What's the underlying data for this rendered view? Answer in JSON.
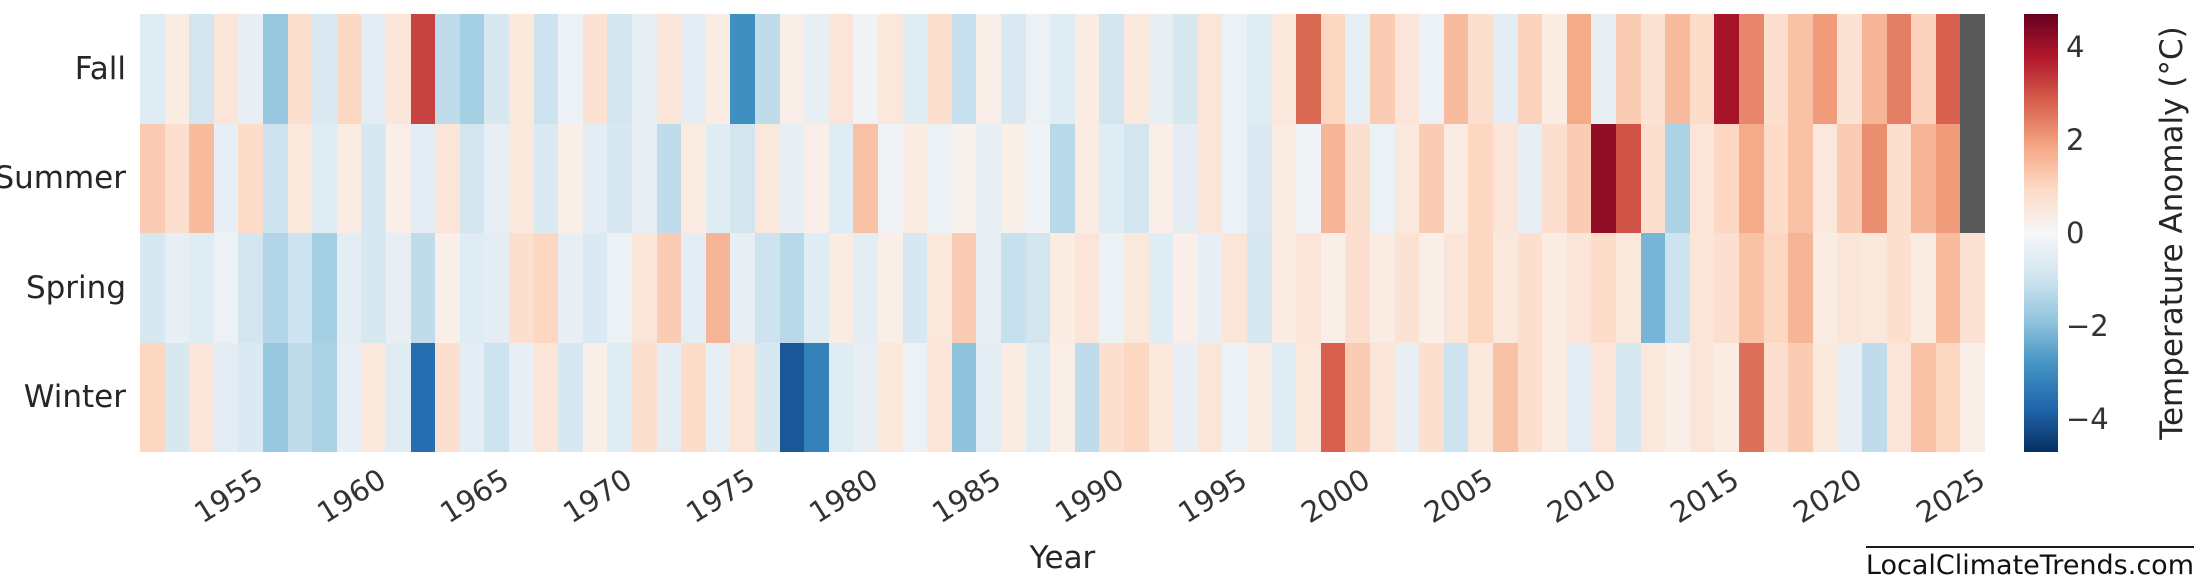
{
  "chart_data": {
    "type": "heatmap",
    "title": "",
    "xlabel": "Year",
    "ylabel": "",
    "colorbar_label": "Temperature Anomaly (°C)",
    "rows": [
      "Fall",
      "Summer",
      "Spring",
      "Winter"
    ],
    "years": [
      1951,
      1952,
      1953,
      1954,
      1955,
      1956,
      1957,
      1958,
      1959,
      1960,
      1961,
      1962,
      1963,
      1964,
      1965,
      1966,
      1967,
      1968,
      1969,
      1970,
      1971,
      1972,
      1973,
      1974,
      1975,
      1976,
      1977,
      1978,
      1979,
      1980,
      1981,
      1982,
      1983,
      1984,
      1985,
      1986,
      1987,
      1988,
      1989,
      1990,
      1991,
      1992,
      1993,
      1994,
      1995,
      1996,
      1997,
      1998,
      1999,
      2000,
      2001,
      2002,
      2003,
      2004,
      2005,
      2006,
      2007,
      2008,
      2009,
      2010,
      2011,
      2012,
      2013,
      2014,
      2015,
      2016,
      2017,
      2018,
      2019,
      2020,
      2021,
      2022,
      2023,
      2024,
      2025
    ],
    "x_ticks": [
      1955,
      1960,
      1965,
      1970,
      1975,
      1980,
      1985,
      1990,
      1995,
      2000,
      2005,
      2010,
      2015,
      2020,
      2025
    ],
    "colorbar_ticks": [
      {
        "value": 4,
        "label": "4"
      },
      {
        "value": 2,
        "label": "2"
      },
      {
        "value": 0,
        "label": "0"
      },
      {
        "value": -2,
        "label": "−2"
      },
      {
        "value": -4,
        "label": "−4"
      }
    ],
    "vmin": -4.7,
    "vmax": 4.7,
    "grid": false,
    "legend_position": "right-colorbar",
    "colors": {
      "stops": [
        "#053061",
        "#2166ac",
        "#4393c3",
        "#92c5de",
        "#d1e5f0",
        "#f7f7f7",
        "#fddbc7",
        "#f4a582",
        "#d6604d",
        "#b2182b",
        "#67001f"
      ],
      "missing": "#595959",
      "background": "#ffffff"
    },
    "values": {
      "Fall": [
        -0.6,
        0.4,
        -0.9,
        0.6,
        -0.4,
        -1.8,
        0.8,
        -0.7,
        1.0,
        -0.5,
        0.6,
        3.2,
        -1.2,
        -1.6,
        -0.8,
        0.5,
        -1.0,
        -0.3,
        0.7,
        -0.9,
        -0.4,
        0.6,
        -0.5,
        0.4,
        -2.9,
        -1.2,
        0.3,
        -0.4,
        0.6,
        -0.2,
        0.5,
        -0.6,
        0.8,
        -1.1,
        0.3,
        -0.7,
        -0.3,
        -0.6,
        0.4,
        -0.9,
        0.5,
        -0.4,
        -0.8,
        0.6,
        -0.3,
        -0.6,
        0.5,
        2.7,
        1.0,
        -0.4,
        1.2,
        0.6,
        -0.3,
        1.5,
        0.8,
        -0.5,
        1.1,
        0.4,
        1.8,
        -0.4,
        1.2,
        0.7,
        1.5,
        0.9,
        3.9,
        2.3,
        0.8,
        1.4,
        2.0,
        0.7,
        1.6,
        2.4,
        1.1,
        2.8,
        null
      ],
      "Summer": [
        1.2,
        0.8,
        1.5,
        -0.4,
        0.9,
        -1.0,
        0.5,
        -0.6,
        0.4,
        -0.8,
        0.3,
        -0.5,
        0.6,
        -0.9,
        -0.4,
        0.5,
        -0.7,
        0.3,
        -0.5,
        -0.8,
        -0.4,
        -1.2,
        0.4,
        -0.6,
        -0.9,
        0.5,
        -0.4,
        0.3,
        -0.6,
        1.4,
        -0.2,
        0.4,
        -0.3,
        0.2,
        -0.4,
        0.3,
        -0.2,
        -1.3,
        0.4,
        -0.6,
        -0.9,
        0.3,
        -0.5,
        0.6,
        -0.3,
        -0.7,
        0.4,
        -0.2,
        1.6,
        0.8,
        -0.3,
        0.5,
        1.2,
        0.4,
        1.0,
        0.6,
        -0.4,
        0.8,
        1.2,
        4.2,
        3.0,
        0.8,
        -1.5,
        0.6,
        1.0,
        1.8,
        0.9,
        1.4,
        0.5,
        1.2,
        2.2,
        0.8,
        1.6,
        2.0,
        null
      ],
      "Spring": [
        -0.8,
        -0.4,
        -0.6,
        -0.3,
        -0.9,
        -1.4,
        -1.0,
        -1.6,
        -0.5,
        -0.8,
        -0.4,
        -1.2,
        0.3,
        -0.6,
        -0.5,
        0.8,
        1.0,
        -0.4,
        -0.7,
        -0.3,
        0.6,
        1.2,
        -0.5,
        1.6,
        -0.4,
        -1.0,
        -1.3,
        -0.6,
        0.4,
        -0.5,
        0.3,
        -0.8,
        0.5,
        1.2,
        -0.4,
        -1.1,
        -0.9,
        0.4,
        0.6,
        -0.3,
        0.5,
        -0.6,
        0.3,
        -0.4,
        0.6,
        -0.8,
        0.4,
        0.6,
        0.3,
        0.8,
        0.4,
        0.7,
        0.3,
        0.6,
        1.0,
        0.5,
        0.8,
        0.4,
        0.6,
        0.9,
        0.5,
        -2.2,
        -1.0,
        0.6,
        0.8,
        1.4,
        1.0,
        1.6,
        0.4,
        0.6,
        0.5,
        0.8,
        0.4,
        1.5,
        0.7
      ],
      "Winter": [
        1.0,
        -0.8,
        0.6,
        -0.5,
        -0.7,
        -1.8,
        -1.2,
        -1.5,
        -0.4,
        0.5,
        -0.6,
        -3.6,
        0.8,
        -0.5,
        -1.0,
        -0.4,
        0.6,
        -0.8,
        0.3,
        -0.6,
        0.8,
        -0.5,
        0.9,
        -0.4,
        0.6,
        -0.8,
        -4.0,
        -3.2,
        -0.6,
        -0.4,
        0.5,
        -0.3,
        0.6,
        -1.9,
        -0.5,
        0.4,
        -0.6,
        0.3,
        -1.2,
        0.8,
        1.0,
        0.5,
        -0.4,
        0.6,
        -0.3,
        0.4,
        -0.6,
        0.5,
        2.8,
        1.2,
        0.6,
        -0.4,
        0.8,
        -1.0,
        0.5,
        1.4,
        0.8,
        0.4,
        -0.5,
        0.6,
        -0.8,
        0.5,
        0.3,
        0.6,
        0.4,
        2.6,
        0.8,
        1.2,
        0.5,
        -0.4,
        -1.2,
        0.6,
        1.4,
        1.0,
        0.3
      ]
    },
    "missing_cells": [
      [
        "Fall",
        2025
      ],
      [
        "Summer",
        2025
      ]
    ]
  },
  "footer": {
    "watermark": "LocalClimateTrends.com"
  }
}
